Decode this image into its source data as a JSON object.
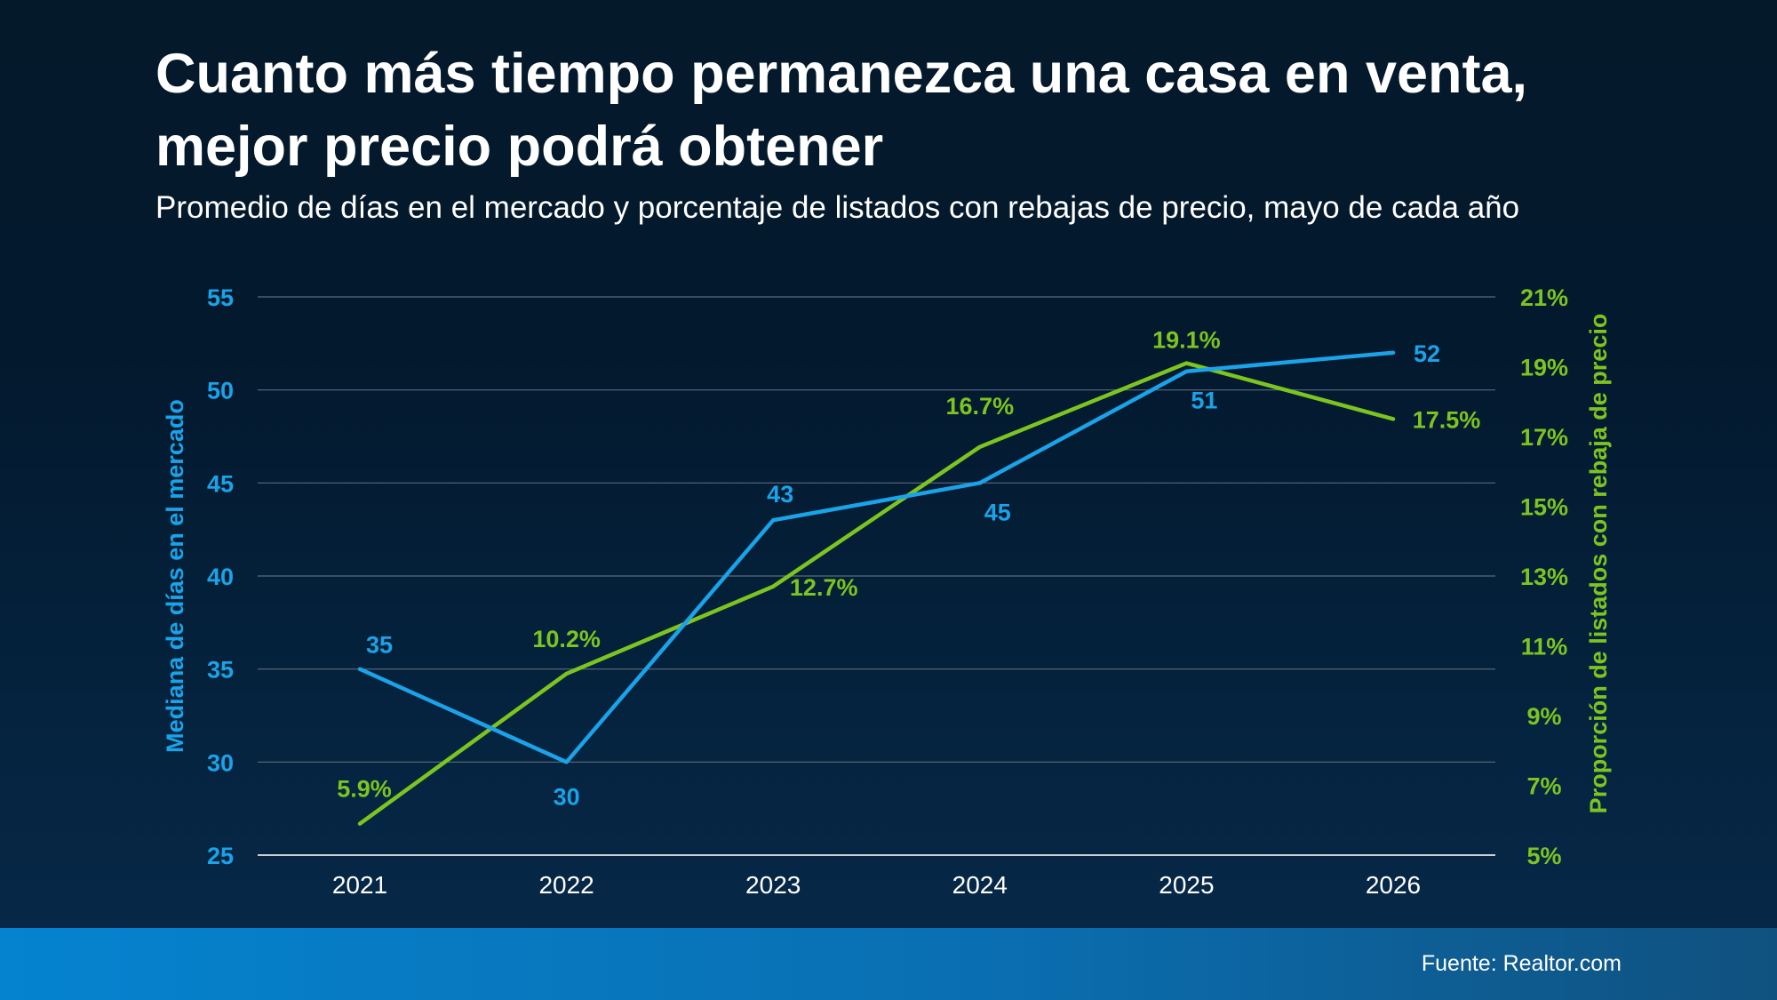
{
  "title": "Cuanto más tiempo permanezca una casa en venta, mejor precio podrá obtener",
  "subtitle": "Promedio de días en el mercado y porcentaje de listados con rebajas de precio, mayo de cada año",
  "source": "Fuente: Realtor.com",
  "colors": {
    "days_series": "#1aa3e8",
    "pct_series": "#7cc520",
    "gridline": "#5a6b7a",
    "axis_text": "#ffffff",
    "footer_band": "#0a7ac4"
  },
  "chart_data": {
    "type": "line",
    "categories": [
      "2021",
      "2022",
      "2023",
      "2024",
      "2025",
      "2026"
    ],
    "ylabel": "Mediana de días en el mercado",
    "y2label": "Proporción de listados con rebaja de precio",
    "ylim": [
      25,
      55
    ],
    "yticks": [
      "55",
      "50",
      "45",
      "40",
      "35",
      "30",
      "25"
    ],
    "y2lim": [
      5,
      21
    ],
    "y2ticks": [
      "21%",
      "19%",
      "17%",
      "15%",
      "13%",
      "11%",
      "9%",
      "7%",
      "5%"
    ],
    "grid": true,
    "series": [
      {
        "axis": "left",
        "color": "#1aa3e8",
        "values": [
          35,
          30,
          43,
          45,
          51,
          52
        ],
        "labels": [
          "35",
          "30",
          "43",
          "45",
          "51",
          "52"
        ]
      },
      {
        "axis": "right",
        "color": "#7cc520",
        "values": [
          5.9,
          10.2,
          12.7,
          16.7,
          19.1,
          17.5
        ],
        "labels": [
          "5.9%",
          "10.2%",
          "12.7%",
          "16.7%",
          "19.1%",
          "17.5%"
        ]
      }
    ]
  }
}
